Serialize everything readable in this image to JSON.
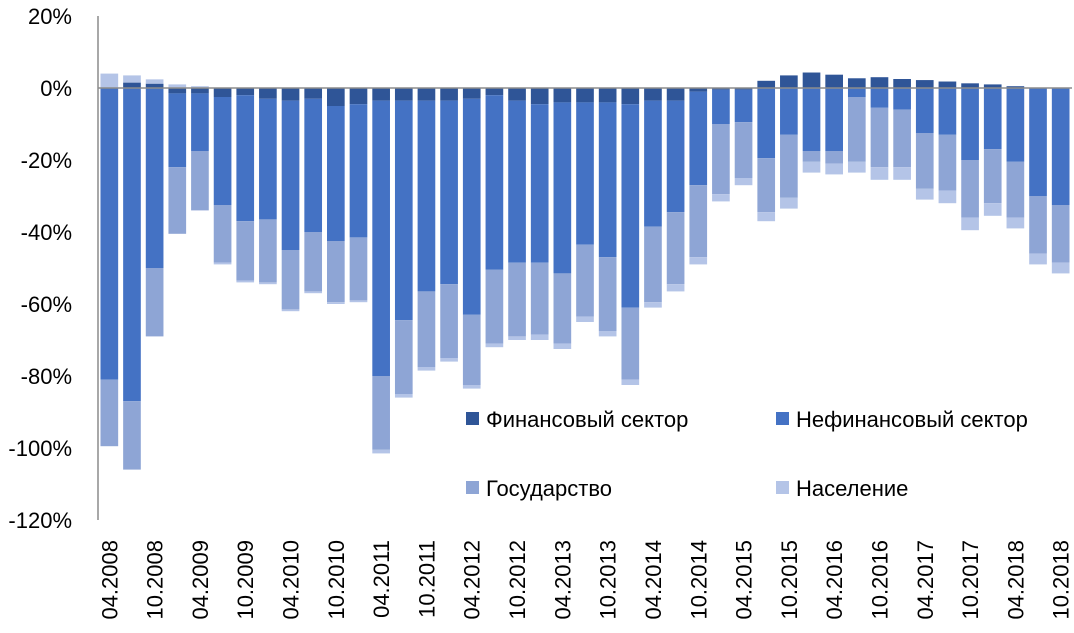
{
  "chart_data": {
    "type": "bar",
    "stacked": true,
    "grid": false,
    "legend_position": "bottom-right-inside",
    "ylim": [
      -120,
      20
    ],
    "yticks": [
      20,
      0,
      -20,
      -40,
      -60,
      -80,
      -100,
      -120
    ],
    "ytick_labels": [
      "20%",
      "0%",
      "-20%",
      "-40%",
      "-60%",
      "-80%",
      "-100%",
      "-120%"
    ],
    "categories": [
      "04.2008",
      "07.2008",
      "10.2008",
      "01.2009",
      "04.2009",
      "07.2009",
      "10.2009",
      "01.2010",
      "04.2010",
      "07.2010",
      "10.2010",
      "01.2011",
      "04.2011",
      "07.2011",
      "10.2011",
      "01.2012",
      "04.2012",
      "07.2012",
      "10.2012",
      "01.2013",
      "04.2013",
      "07.2013",
      "10.2013",
      "01.2014",
      "04.2014",
      "07.2014",
      "10.2014",
      "01.2015",
      "04.2015",
      "07.2015",
      "10.2015",
      "01.2016",
      "04.2016",
      "07.2016",
      "10.2016",
      "01.2017",
      "04.2017",
      "07.2017",
      "10.2017",
      "01.2018",
      "04.2018",
      "07.2018",
      "10.2018"
    ],
    "xtick_labels": [
      "04.2008",
      "10.2008",
      "04.2009",
      "10.2009",
      "04.2010",
      "10.2010",
      "04.2011",
      "10.2011",
      "04.2012",
      "10.2012",
      "04.2013",
      "10.2013",
      "04.2014",
      "10.2014",
      "04.2015",
      "10.2015",
      "04.2016",
      "10.2016",
      "04.2017",
      "10.2017",
      "04.2018",
      "10.2018"
    ],
    "series": [
      {
        "name": "Финансовый сектор",
        "color": "#2f5597",
        "values": [
          0,
          1.5,
          1.2,
          -1.5,
          -1.5,
          -2.5,
          -2,
          -3,
          -3.5,
          -3,
          -5,
          -4.5,
          -3.5,
          -3.5,
          -3.5,
          -3.5,
          -3,
          -2,
          -3.5,
          -4.5,
          -4,
          -4,
          -4,
          -4.5,
          -3.5,
          -3.5,
          -1,
          -0.5,
          -0.5,
          2,
          3.5,
          4.3,
          3.7,
          2.7,
          3,
          2.5,
          2.2,
          1.8,
          1.3,
          1,
          0.5,
          0,
          0
        ]
      },
      {
        "name": "Нефинансовый сектор",
        "color": "#4472c4",
        "values": [
          -81,
          -87,
          -50,
          -20.5,
          -16,
          -30,
          -35,
          -33.5,
          -41.5,
          -37,
          -37.5,
          -37,
          -76.5,
          -61,
          -53,
          -51,
          -60,
          -48.5,
          -45,
          -44,
          -47.5,
          -39.5,
          -43,
          -56.5,
          -35,
          -31,
          -26,
          -9.5,
          -9,
          -19.5,
          -13,
          -17.5,
          -17.5,
          -2.5,
          -5.5,
          -6,
          -12.5,
          -13,
          -20,
          -17,
          -20.5,
          -30,
          -32.5
        ]
      },
      {
        "name": "Государство",
        "color": "#8ea5d5",
        "values": [
          -18.5,
          -19,
          -19,
          -18.5,
          -16.5,
          -16,
          -16.5,
          -17.5,
          -16.5,
          -16.5,
          -17,
          -17.5,
          -20.5,
          -20.5,
          -21,
          -20.5,
          -19.5,
          -20.5,
          -20.5,
          -20,
          -19.5,
          -20,
          -20.5,
          -20,
          -21,
          -20,
          -20,
          -19.5,
          -15.5,
          -15,
          -17.5,
          -3,
          -3.5,
          -18,
          -16.5,
          -16,
          -15.5,
          -15.5,
          -16,
          -15,
          -15.5,
          -16,
          -16
        ]
      },
      {
        "name": "Население",
        "color": "#b4c4e7",
        "values": [
          4,
          2,
          1.2,
          1,
          0.5,
          -0.5,
          -0.5,
          -0.5,
          -0.5,
          -0.5,
          -0.5,
          -0.5,
          -1,
          -1,
          -1,
          -1,
          -1,
          -1,
          -1,
          -1.5,
          -1.5,
          -1.5,
          -1.5,
          -1.5,
          -1.5,
          -2,
          -2,
          -2,
          -2,
          -2.5,
          -3,
          -3,
          -3,
          -3,
          -3.5,
          -3.5,
          -3,
          -3.5,
          -3.5,
          -3.5,
          -3,
          -3,
          -3
        ]
      }
    ]
  }
}
